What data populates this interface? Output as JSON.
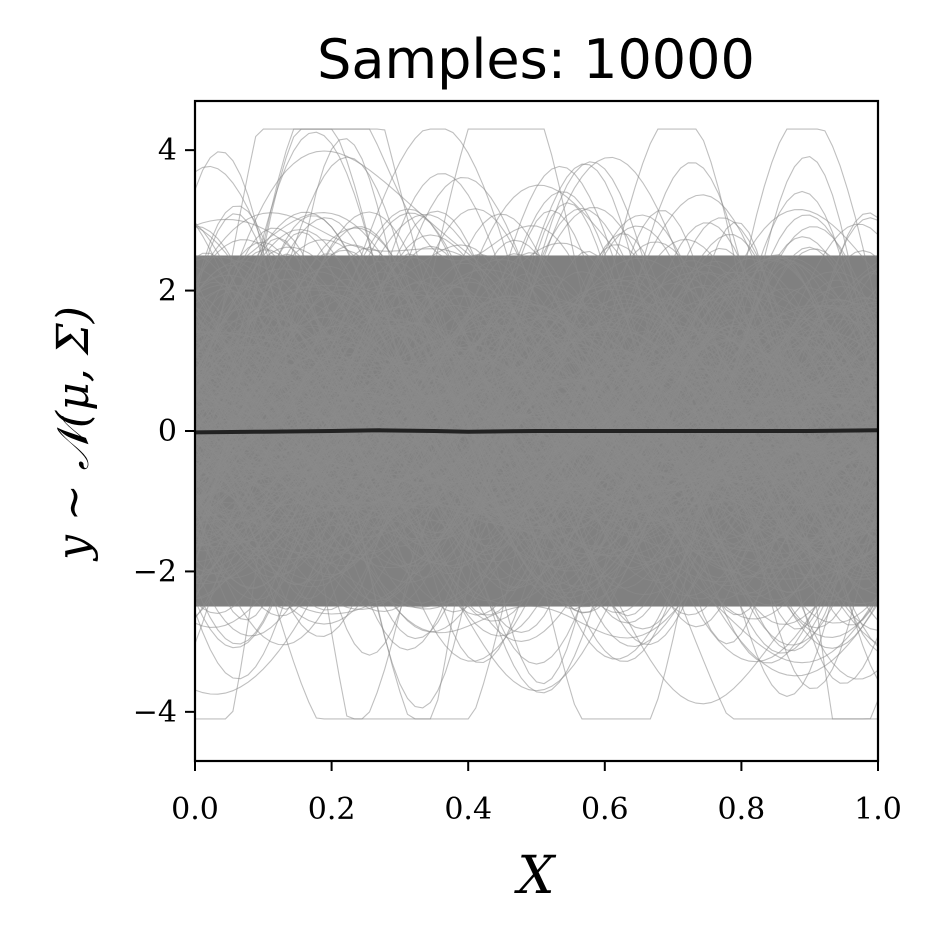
{
  "chart_data": {
    "type": "line",
    "title": "Samples: 10000",
    "xlabel": "X",
    "ylabel": "y ~ 𝒩(μ, Σ)",
    "xlim": [
      0.0,
      1.0
    ],
    "ylim": [
      -4.7,
      4.7
    ],
    "xticks": [
      0.0,
      0.2,
      0.4,
      0.6,
      0.8,
      1.0
    ],
    "xtick_labels": [
      "0.0",
      "0.2",
      "0.4",
      "0.6",
      "0.8",
      "1.0"
    ],
    "yticks": [
      -4,
      -2,
      0,
      2,
      4
    ],
    "ytick_labels": [
      "−4",
      "−2",
      "0",
      "2",
      "4"
    ],
    "grid": false,
    "samples": {
      "count": 10000,
      "color": "#808080",
      "dense_band": [
        -2.5,
        2.5
      ],
      "outer_extent": [
        -4.1,
        4.3
      ]
    },
    "series": [
      {
        "x": [
          0.0,
          0.1,
          0.2,
          0.27,
          0.35,
          0.4,
          0.5,
          0.6,
          0.7,
          0.8,
          0.9,
          1.0
        ],
        "y": [
          -0.02,
          -0.01,
          0.0,
          0.01,
          0.0,
          -0.01,
          0.0,
          0.0,
          0.0,
          0.0,
          0.0,
          0.01
        ],
        "color": "#222222"
      }
    ]
  }
}
